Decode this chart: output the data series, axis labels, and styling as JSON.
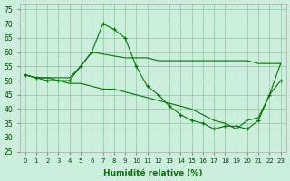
{
  "xlabel": "Humidité relative (%)",
  "xlim": [
    -0.5,
    23.5
  ],
  "ylim": [
    25,
    77
  ],
  "yticks": [
    25,
    30,
    35,
    40,
    45,
    50,
    55,
    60,
    65,
    70,
    75
  ],
  "xticks": [
    0,
    1,
    2,
    3,
    4,
    5,
    6,
    7,
    8,
    9,
    10,
    11,
    12,
    13,
    14,
    15,
    16,
    17,
    18,
    19,
    20,
    21,
    22,
    23
  ],
  "bg_color": "#cceedd",
  "grid_color": "#99ccaa",
  "line_color": "#007700",
  "figsize": [
    3.2,
    2.0
  ],
  "dpi": 100,
  "line1_x": [
    0,
    1,
    2,
    3,
    4,
    5,
    6,
    7,
    8,
    9,
    10,
    11,
    12,
    13,
    14,
    15,
    16,
    17,
    18,
    19,
    20,
    21,
    22,
    23
  ],
  "line1_y": [
    52,
    51,
    50,
    50,
    50,
    55,
    60,
    70,
    68,
    65,
    55,
    48,
    45,
    41,
    38,
    36,
    35,
    33,
    34,
    34,
    33,
    36,
    45,
    50
  ],
  "line2_x": [
    0,
    1,
    2,
    3,
    4,
    5,
    6,
    9,
    10,
    11,
    12,
    13,
    14,
    15,
    16,
    17,
    18,
    19,
    20,
    21,
    22,
    23
  ],
  "line2_y": [
    52,
    51,
    51,
    51,
    51,
    55,
    60,
    58,
    58,
    58,
    57,
    57,
    57,
    57,
    57,
    57,
    57,
    57,
    57,
    56,
    56,
    56
  ],
  "line3_x": [
    0,
    1,
    2,
    3,
    4,
    5,
    6,
    7,
    8,
    9,
    10,
    11,
    12,
    13,
    14,
    15,
    16,
    17,
    18,
    19,
    20,
    21,
    22,
    23
  ],
  "line3_y": [
    52,
    51,
    51,
    50,
    49,
    49,
    48,
    47,
    47,
    46,
    45,
    44,
    43,
    42,
    41,
    40,
    38,
    36,
    35,
    33,
    36,
    37,
    45,
    56
  ]
}
